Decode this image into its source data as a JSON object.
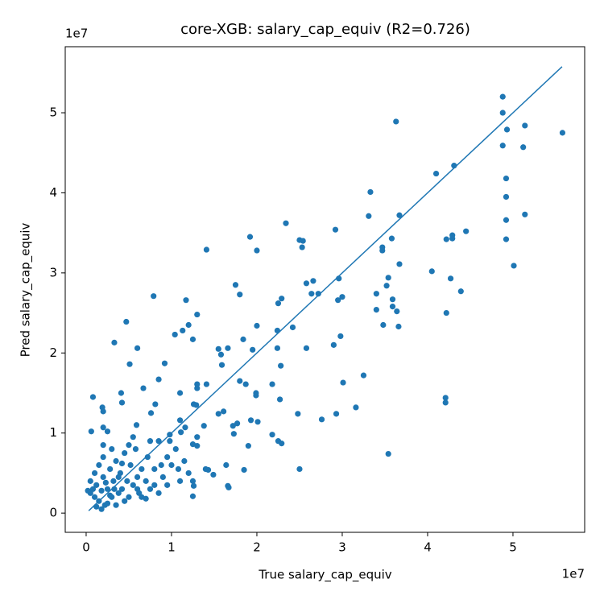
{
  "chart_data": {
    "type": "scatter",
    "title": "core-XGB: salary_cap_equiv (R2=0.726)",
    "x_label": "True salary_cap_equiv",
    "y_label": "Pred salary_cap_equiv",
    "x_offset_label": "1e7",
    "y_offset_label": "1e7",
    "xlim": [
      -0.245,
      5.84
    ],
    "ylim": [
      -0.24,
      5.825
    ],
    "xticks": [
      0,
      1,
      2,
      3,
      4,
      5
    ],
    "yticks": [
      0,
      1,
      2,
      3,
      4,
      5
    ],
    "color": "#1f77b4",
    "reference_line": {
      "x": [
        0.03,
        5.575
      ],
      "y": [
        0.03,
        5.575
      ]
    },
    "x": [
      4.88,
      4.88,
      4.93,
      5.14,
      5.58,
      3.63,
      4.88,
      5.12,
      4.1,
      4.31,
      4.92,
      4.92,
      3.33,
      3.31,
      5.14,
      4.92,
      3.67,
      2.34,
      1.92,
      3.58,
      4.45,
      4.29,
      4.29,
      4.22,
      4.92,
      2.5,
      2.54,
      2.92,
      1.41,
      2.0,
      3.47,
      2.53,
      3.47,
      3.67,
      5.01,
      4.05,
      3.54,
      2.96,
      4.27,
      2.66,
      2.58,
      3.52,
      1.75,
      2.64,
      2.72,
      3.4,
      1.8,
      4.39,
      0.79,
      3.0,
      2.95,
      2.29,
      2.25,
      1.17,
      3.59,
      3.59,
      3.64,
      3.4,
      4.22,
      1.3,
      1.2,
      0.47,
      2.0,
      2.42,
      3.48,
      3.66,
      1.13,
      2.24,
      1.04,
      2.98,
      1.25,
      0.33,
      1.84,
      0.6,
      1.66,
      1.55,
      1.95,
      2.24,
      2.58,
      1.58,
      2.9,
      0.51,
      0.92,
      1.59,
      2.28,
      3.25,
      0.85,
      1.8,
      1.87,
      2.18,
      1.3,
      1.3,
      1.41,
      3.01,
      0.67,
      0.41,
      1.1,
      1.99,
      1.99,
      0.08,
      2.27,
      4.21,
      4.21,
      0.42,
      0.81,
      1.26,
      1.29,
      3.16,
      0.19,
      0.2,
      0.76,
      1.61,
      1.55,
      2.48,
      2.93,
      2.76,
      1.1,
      1.93,
      2.01,
      1.77,
      1.72,
      1.38,
      1.16,
      0.59,
      0.2,
      0.06,
      1.11,
      1.73,
      2.18,
      0.25,
      0.98,
      2.25,
      2.29,
      1.9,
      3.54,
      1.3,
      1.25,
      1.64,
      1.85,
      1.43,
      2.5,
      1.49,
      1.66,
      1.67,
      1.25,
      1.26,
      1.25,
      0.05,
      0.08,
      0.1,
      0.12,
      0.15,
      0.18,
      0.2,
      0.22,
      0.25,
      0.28,
      0.3,
      0.32,
      0.35,
      0.38,
      0.4,
      0.42,
      0.45,
      0.48,
      0.5,
      0.52,
      0.55,
      0.58,
      0.6,
      0.62,
      0.65,
      0.7,
      0.72,
      0.75,
      0.8,
      0.85,
      0.9,
      0.95,
      1.0,
      1.05,
      1.1,
      1.15,
      0.2,
      0.2,
      0.25,
      0.15,
      0.1,
      0.3,
      0.35,
      0.45,
      0.55,
      0.65,
      0.75,
      0.85,
      0.95,
      0.05,
      0.12,
      0.28,
      0.38,
      0.42,
      0.5,
      0.6,
      0.7,
      0.8,
      0.88,
      0.98,
      1.08,
      1.2,
      1.3,
      1.4,
      0.02,
      0.18,
      0.23,
      0.33
    ],
    "y": [
      5.2,
      5.0,
      4.79,
      4.84,
      4.75,
      4.89,
      4.59,
      4.57,
      4.24,
      4.34,
      4.18,
      3.95,
      4.01,
      3.71,
      3.73,
      3.66,
      3.72,
      3.62,
      3.45,
      3.43,
      3.52,
      3.47,
      3.43,
      3.42,
      3.42,
      3.41,
      3.4,
      3.54,
      3.29,
      3.28,
      3.32,
      3.32,
      3.28,
      3.11,
      3.09,
      3.02,
      2.94,
      2.93,
      2.93,
      2.9,
      2.87,
      2.84,
      2.85,
      2.74,
      2.74,
      2.74,
      2.73,
      2.77,
      2.71,
      2.7,
      2.66,
      2.68,
      2.62,
      2.66,
      2.67,
      2.58,
      2.52,
      2.54,
      2.5,
      2.48,
      2.35,
      2.39,
      2.34,
      2.32,
      2.35,
      2.33,
      2.28,
      2.28,
      2.23,
      2.21,
      2.17,
      2.13,
      2.17,
      2.06,
      2.06,
      2.05,
      2.04,
      2.06,
      2.06,
      1.98,
      2.1,
      1.86,
      1.87,
      1.85,
      1.84,
      1.72,
      1.67,
      1.65,
      1.61,
      1.61,
      1.61,
      1.56,
      1.61,
      1.63,
      1.56,
      1.5,
      1.5,
      1.5,
      1.47,
      1.45,
      1.42,
      1.44,
      1.38,
      1.38,
      1.36,
      1.36,
      1.35,
      1.32,
      1.32,
      1.27,
      1.25,
      1.27,
      1.24,
      1.24,
      1.24,
      1.17,
      1.16,
      1.16,
      1.14,
      1.12,
      1.09,
      1.09,
      1.07,
      1.1,
      1.07,
      1.02,
      1.01,
      0.99,
      0.98,
      1.02,
      0.98,
      0.9,
      0.87,
      0.84,
      0.74,
      0.84,
      0.86,
      0.6,
      0.54,
      0.54,
      0.55,
      0.48,
      0.34,
      0.32,
      0.4,
      0.34,
      0.21,
      0.25,
      0.3,
      0.2,
      0.35,
      0.15,
      0.28,
      0.45,
      0.1,
      0.3,
      0.55,
      0.2,
      0.4,
      0.65,
      0.25,
      0.5,
      0.3,
      0.75,
      0.4,
      0.2,
      0.6,
      0.35,
      0.8,
      0.45,
      0.25,
      0.55,
      0.4,
      0.7,
      0.3,
      0.55,
      0.9,
      0.45,
      0.35,
      0.6,
      0.8,
      0.4,
      0.65,
      0.85,
      0.7,
      0.12,
      0.6,
      0.5,
      0.8,
      0.1,
      0.15,
      0.95,
      0.2,
      0.9,
      0.25,
      0.7,
      0.4,
      0.08,
      0.22,
      0.45,
      0.62,
      0.85,
      0.3,
      0.18,
      0.35,
      0.6,
      0.9,
      0.55,
      0.5,
      0.95,
      0.55,
      0.28,
      0.05,
      0.38,
      0.3
    ]
  }
}
